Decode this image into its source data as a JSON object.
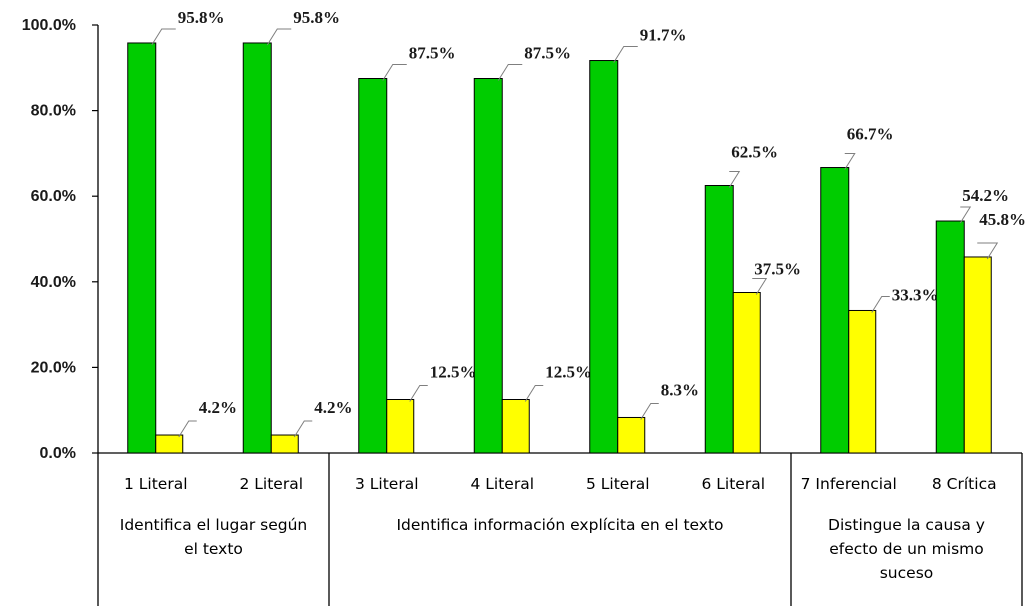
{
  "chart_data": {
    "type": "bar",
    "categories": [
      "1 Literal",
      "2 Literal",
      "3 Literal",
      "4 Literal",
      "5 Literal",
      "6 Literal",
      "7 Inferencial",
      "8 Crítica"
    ],
    "groups": [
      {
        "lines": [
          "Identifica el lugar según",
          "el texto"
        ],
        "categories": [
          "1 Literal",
          "2 Literal"
        ]
      },
      {
        "lines": [
          "Identifica información explícita en el texto"
        ],
        "categories": [
          "3 Literal",
          "4 Literal",
          "5 Literal",
          "6 Literal"
        ]
      },
      {
        "lines": [
          "Distingue la causa y",
          "efecto de un mismo",
          "suceso"
        ],
        "categories": [
          "7 Inferencial",
          "8 Crítica"
        ]
      }
    ],
    "series": [
      {
        "color": "#00CC00",
        "values": [
          95.8,
          95.8,
          87.5,
          87.5,
          91.7,
          62.5,
          66.7,
          54.2
        ]
      },
      {
        "color": "#FFFF00",
        "values": [
          4.2,
          4.2,
          12.5,
          12.5,
          8.3,
          37.5,
          33.3,
          45.8
        ]
      }
    ],
    "data_labels": [
      [
        "95.8%",
        "95.8%",
        "87.5%",
        "87.5%",
        "91.7%",
        "62.5%",
        "66.7%",
        "54.2%"
      ],
      [
        "4.2%",
        "4.2%",
        "12.5%",
        "12.5%",
        "8.3%",
        "37.5%",
        "33.3%",
        "45.8%"
      ]
    ],
    "yticks": [
      "0.0%",
      "20.0%",
      "40.0%",
      "60.0%",
      "80.0%",
      "100.0%"
    ],
    "ylim": [
      0,
      100
    ],
    "grid": false,
    "legend": "none",
    "title": "",
    "xlabel": "",
    "ylabel": ""
  }
}
